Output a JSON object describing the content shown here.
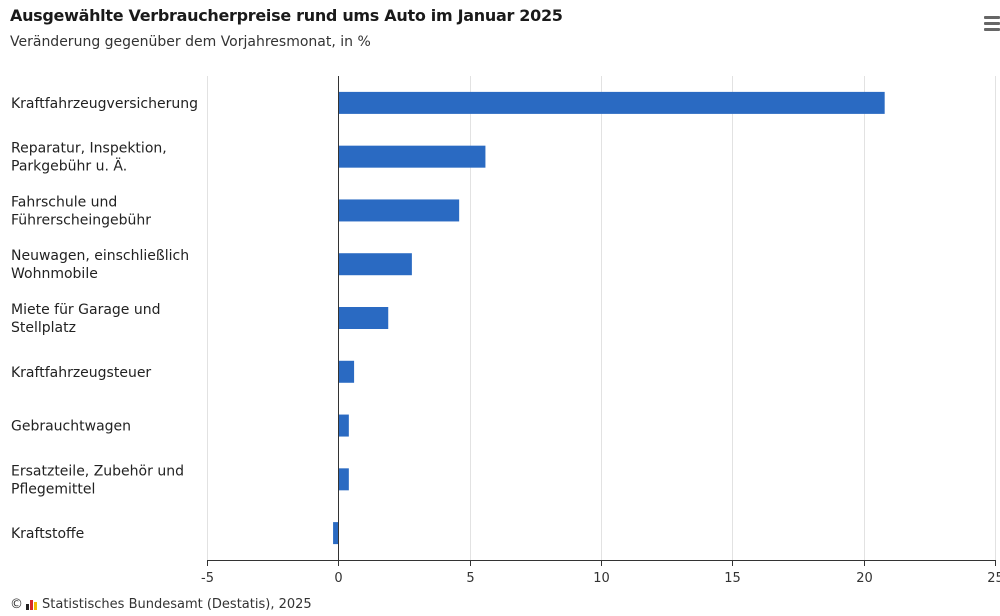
{
  "header": {
    "title": "Ausgewählte Verbraucherpreise rund ums Auto im Januar 2025",
    "subtitle": "Veränderung gegenüber dem Vorjahresmonat, in %"
  },
  "footer": {
    "copyright_symbol": "©",
    "source": "Statistisches Bundesamt (Destatis), 2025",
    "logo_colors": [
      "#222222",
      "#d62828",
      "#f2b705"
    ]
  },
  "menu": {
    "icon": "hamburger-menu-icon"
  },
  "colors": {
    "bar": "#2a6ac2",
    "grid": "#e2e2e2",
    "axis": "#333333"
  },
  "chart_data": {
    "type": "bar",
    "orientation": "horizontal",
    "title": "Ausgewählte Verbraucherpreise rund ums Auto im Januar 2025",
    "subtitle": "Veränderung gegenüber dem Vorjahresmonat, in %",
    "categories": [
      [
        "Kraftfahrzeugversicherung"
      ],
      [
        "Reparatur, Inspektion,",
        "Parkgebühr u. Ä."
      ],
      [
        "Fahrschule und",
        "Führerscheingebühr"
      ],
      [
        "Neuwagen, einschließlich",
        "Wohnmobile"
      ],
      [
        "Miete für Garage und",
        "Stellplatz"
      ],
      [
        "Kraftfahrzeugsteuer"
      ],
      [
        "Gebrauchtwagen"
      ],
      [
        "Ersatzteile, Zubehör und",
        "Pflegemittel"
      ],
      [
        "Kraftstoffe"
      ]
    ],
    "values": [
      20.8,
      5.6,
      4.6,
      2.8,
      1.9,
      0.6,
      0.4,
      0.4,
      -0.2
    ],
    "xlim": [
      -5,
      25
    ],
    "xticks": [
      -5,
      0,
      5,
      10,
      15,
      20,
      25
    ],
    "xtick_labels": [
      "-5",
      "0",
      "5",
      "10",
      "15",
      "20",
      "25"
    ],
    "grid": true
  }
}
